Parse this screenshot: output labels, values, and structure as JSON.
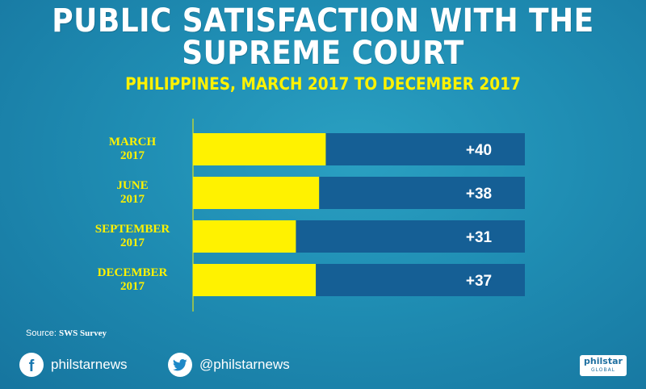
{
  "header": {
    "title_line1": "PUBLIC SATISFACTION WITH THE",
    "title_line2": "SUPREME COURT",
    "subtitle": "PHILIPPINES, MARCH 2017 TO DECEMBER 2017"
  },
  "chart_data": {
    "type": "bar",
    "orientation": "horizontal",
    "categories": [
      [
        "MARCH",
        "2017"
      ],
      [
        "JUNE",
        "2017"
      ],
      [
        "SEPTEMBER",
        "2017"
      ],
      [
        "DECEMBER",
        "2017"
      ]
    ],
    "values": [
      40,
      38,
      31,
      37
    ],
    "value_labels": [
      "+40",
      "+38",
      "+31",
      "+37"
    ],
    "xlim": [
      0,
      100
    ],
    "grid": false,
    "colors": {
      "bar_fill": "#fff200",
      "bar_track": "#155f95",
      "axis": "#fff200"
    }
  },
  "footer": {
    "source_prefix": "Source: ",
    "source_name": "SWS Survey",
    "facebook_handle": "philstarnews",
    "twitter_handle": "@philstarnews",
    "logo_main": "philstar",
    "logo_sub": "GLOBAL"
  }
}
